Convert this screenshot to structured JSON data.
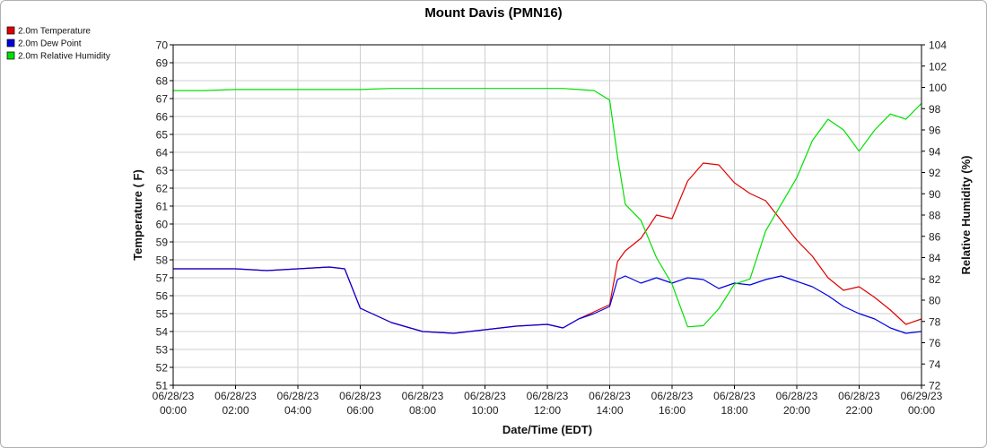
{
  "chart_data": {
    "type": "line",
    "title": "Mount Davis (PMN16)",
    "xlabel": "Date/Time (EDT)",
    "ylabel": "Temperature ( F)",
    "y2label": "Relative Humidity (%)",
    "ylim": [
      51,
      70
    ],
    "y2lim": [
      72,
      104
    ],
    "grid": true,
    "legend_position": "top-left",
    "x_ticks": [
      {
        "date": "06/28/23",
        "time": "00:00"
      },
      {
        "date": "06/28/23",
        "time": "02:00"
      },
      {
        "date": "06/28/23",
        "time": "04:00"
      },
      {
        "date": "06/28/23",
        "time": "06:00"
      },
      {
        "date": "06/28/23",
        "time": "08:00"
      },
      {
        "date": "06/28/23",
        "time": "10:00"
      },
      {
        "date": "06/28/23",
        "time": "12:00"
      },
      {
        "date": "06/28/23",
        "time": "14:00"
      },
      {
        "date": "06/28/23",
        "time": "16:00"
      },
      {
        "date": "06/28/23",
        "time": "18:00"
      },
      {
        "date": "06/28/23",
        "time": "20:00"
      },
      {
        "date": "06/28/23",
        "time": "22:00"
      },
      {
        "date": "06/29/23",
        "time": "00:00"
      }
    ],
    "y_ticks": [
      51,
      52,
      53,
      54,
      55,
      56,
      57,
      58,
      59,
      60,
      61,
      62,
      63,
      64,
      65,
      66,
      67,
      68,
      69,
      70
    ],
    "y2_ticks": [
      72,
      74,
      76,
      78,
      80,
      82,
      84,
      86,
      88,
      90,
      92,
      94,
      96,
      98,
      100,
      102,
      104
    ],
    "x": [
      "06/28/23 00:00",
      "06/28/23 01:00",
      "06/28/23 02:00",
      "06/28/23 03:00",
      "06/28/23 04:00",
      "06/28/23 05:00",
      "06/28/23 05:30",
      "06/28/23 06:00",
      "06/28/23 07:00",
      "06/28/23 08:00",
      "06/28/23 09:00",
      "06/28/23 10:00",
      "06/28/23 11:00",
      "06/28/23 12:00",
      "06/28/23 12:30",
      "06/28/23 13:00",
      "06/28/23 13:30",
      "06/28/23 14:00",
      "06/28/23 14:15",
      "06/28/23 14:30",
      "06/28/23 15:00",
      "06/28/23 15:30",
      "06/28/23 16:00",
      "06/28/23 16:30",
      "06/28/23 17:00",
      "06/28/23 17:30",
      "06/28/23 18:00",
      "06/28/23 18:30",
      "06/28/23 19:00",
      "06/28/23 19:30",
      "06/28/23 20:00",
      "06/28/23 20:30",
      "06/28/23 21:00",
      "06/28/23 21:30",
      "06/28/23 22:00",
      "06/28/23 22:30",
      "06/28/23 23:00",
      "06/28/23 23:30",
      "06/29/23 00:00"
    ],
    "series": [
      {
        "name": "2.0m Temperature",
        "color": "#e00000",
        "axis": "left",
        "values": [
          57.5,
          57.5,
          57.5,
          57.4,
          57.5,
          57.6,
          57.5,
          55.3,
          54.5,
          54.0,
          53.9,
          54.1,
          54.3,
          54.4,
          54.2,
          54.7,
          55.1,
          55.5,
          57.9,
          58.5,
          59.2,
          60.5,
          60.3,
          62.4,
          63.4,
          63.3,
          62.3,
          61.7,
          61.3,
          60.2,
          59.1,
          58.2,
          57.0,
          56.3,
          56.5,
          55.9,
          55.2,
          54.4,
          54.7
        ]
      },
      {
        "name": "2.0m Dew Point",
        "color": "#0000e0",
        "axis": "left",
        "values": [
          57.5,
          57.5,
          57.5,
          57.4,
          57.5,
          57.6,
          57.5,
          55.3,
          54.5,
          54.0,
          53.9,
          54.1,
          54.3,
          54.4,
          54.2,
          54.7,
          55.0,
          55.4,
          56.9,
          57.1,
          56.7,
          57.0,
          56.7,
          57.0,
          56.9,
          56.4,
          56.7,
          56.6,
          56.9,
          57.1,
          56.8,
          56.5,
          56.0,
          55.4,
          55.0,
          54.7,
          54.2,
          53.9,
          54.0
        ]
      },
      {
        "name": "2.0m Relative Humidity",
        "color": "#00e000",
        "axis": "right",
        "values": [
          99.7,
          99.7,
          99.8,
          99.8,
          99.8,
          99.8,
          99.8,
          99.8,
          99.9,
          99.9,
          99.9,
          99.9,
          99.9,
          99.9,
          99.9,
          99.8,
          99.7,
          98.8,
          93.5,
          89.0,
          87.5,
          84.0,
          81.5,
          77.5,
          77.6,
          79.2,
          81.5,
          82.0,
          86.5,
          89.0,
          91.5,
          95.0,
          97.0,
          96.0,
          94.0,
          96.0,
          97.5,
          97.0,
          98.5
        ]
      }
    ]
  }
}
